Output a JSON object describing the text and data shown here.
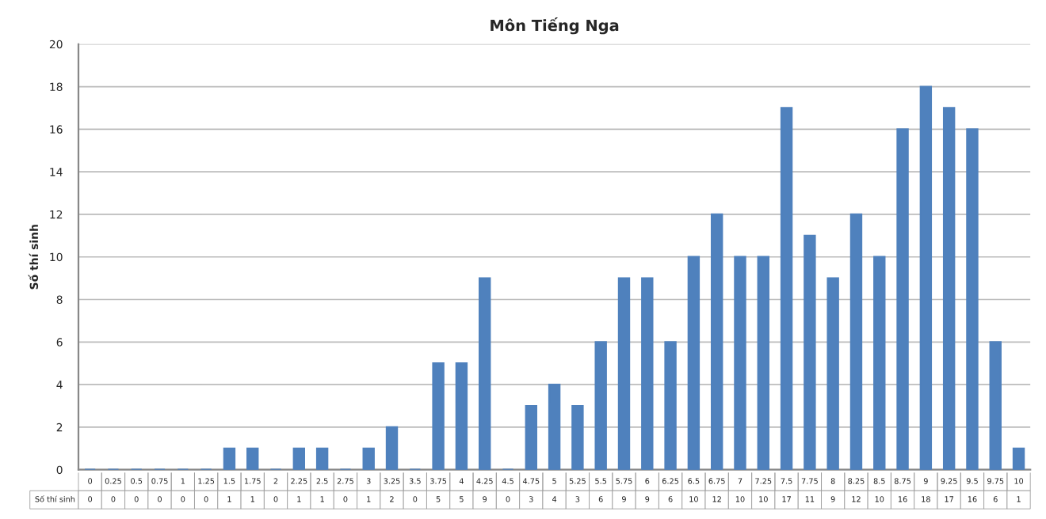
{
  "chart_data": {
    "type": "bar",
    "title": "Môn Tiếng Nga",
    "ylabel": "Số thí sinh",
    "categories": [
      "0",
      "0.25",
      "0.5",
      "0.75",
      "1",
      "1.25",
      "1.5",
      "1.75",
      "2",
      "2.25",
      "2.5",
      "2.75",
      "3",
      "3.25",
      "3.5",
      "3.75",
      "4",
      "4.25",
      "4.5",
      "4.75",
      "5",
      "5.25",
      "5.5",
      "5.75",
      "6",
      "6.25",
      "6.5",
      "6.75",
      "7",
      "7.25",
      "7.5",
      "7.75",
      "8",
      "8.25",
      "8.5",
      "8.75",
      "9",
      "9.25",
      "9.5",
      "9.75",
      "10"
    ],
    "values": [
      0,
      0,
      0,
      0,
      0,
      0,
      1,
      1,
      0,
      1,
      1,
      0,
      1,
      2,
      0,
      5,
      5,
      9,
      0,
      3,
      4,
      3,
      6,
      9,
      9,
      6,
      10,
      12,
      10,
      10,
      17,
      11,
      9,
      12,
      10,
      16,
      18,
      17,
      16,
      6,
      1
    ],
    "color": "#4f81bd",
    "ylim": [
      0,
      20
    ],
    "yticks": [
      0,
      2,
      4,
      6,
      8,
      10,
      12,
      14,
      16,
      18,
      20
    ],
    "grid": "y",
    "data_labels": true
  }
}
